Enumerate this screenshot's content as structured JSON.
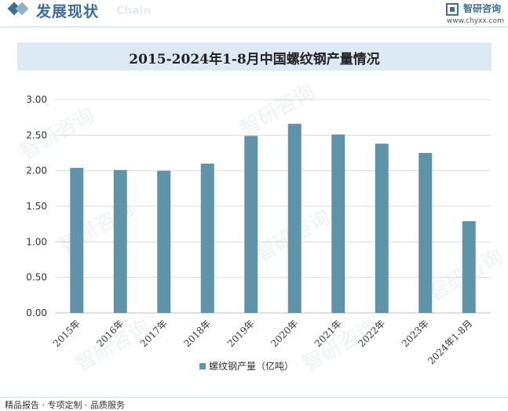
{
  "header": {
    "title": "发展现状",
    "subtitle_en": "Chain",
    "brand": "智研咨询",
    "url": "www.chyxx.com"
  },
  "footer": {
    "text": "精品报告 · 专项定制 · 品质服务"
  },
  "watermark_text": "智研咨询",
  "colors": {
    "bar": "#5f93aa",
    "accent": "#3d6f95",
    "title_bg": "#dde9f4",
    "grid": "#dcdcdc"
  },
  "chart_data": {
    "type": "bar",
    "title": "2015-2024年1-8月中国螺纹钢产量情况",
    "categories": [
      "2015年",
      "2016年",
      "2017年",
      "2018年",
      "2019年",
      "2020年",
      "2021年",
      "2022年",
      "2023年",
      "2024年1-8月"
    ],
    "series": [
      {
        "name": "螺纹钢产量（亿吨）",
        "values": [
          2.04,
          2.01,
          2.0,
          2.1,
          2.49,
          2.66,
          2.51,
          2.38,
          2.25,
          1.29
        ]
      }
    ],
    "ylim": [
      0,
      3
    ],
    "yticks": [
      "0.00",
      "0.50",
      "1.00",
      "1.50",
      "2.00",
      "2.50",
      "3.00"
    ],
    "grid": true,
    "legend_position": "bottom-center"
  }
}
